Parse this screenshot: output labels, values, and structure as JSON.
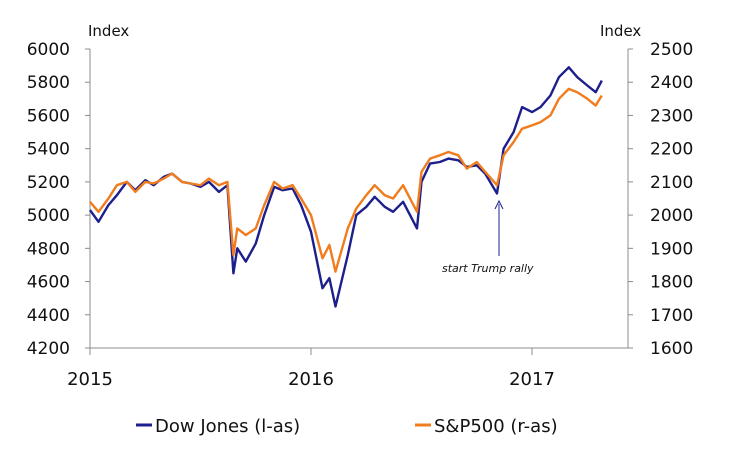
{
  "chart_data": {
    "type": "line",
    "title": "",
    "xlabel": "",
    "ylabel_left": "Index",
    "ylabel_right": "Index",
    "x_ticks": [
      "2015",
      "2016",
      "2017"
    ],
    "x_range": [
      "2015-01",
      "2017-07"
    ],
    "y_left": {
      "min": 4200,
      "max": 6000,
      "ticks": [
        "4200",
        "4400",
        "4600",
        "4800",
        "5000",
        "5200",
        "5400",
        "5600",
        "5800",
        "6000"
      ]
    },
    "y_right": {
      "min": 1600,
      "max": 2500,
      "ticks": [
        "1600",
        "1700",
        "1800",
        "1900",
        "2000",
        "2100",
        "2200",
        "2300",
        "2400",
        "2500"
      ]
    },
    "grid": false,
    "legend_position": "bottom",
    "annotation": {
      "text": "start Trump rally",
      "x": "2016-11",
      "y_left": 5080
    },
    "series": [
      {
        "name": "Dow Jones (l-as)",
        "axis": "left",
        "color": "#1c1f8c",
        "points": [
          [
            "2015-01",
            5030
          ],
          [
            "2015-01-15",
            4960
          ],
          [
            "2015-02",
            5060
          ],
          [
            "2015-02-15",
            5120
          ],
          [
            "2015-03",
            5200
          ],
          [
            "2015-03-15",
            5150
          ],
          [
            "2015-04",
            5210
          ],
          [
            "2015-04-15",
            5180
          ],
          [
            "2015-05",
            5230
          ],
          [
            "2015-05-15",
            5250
          ],
          [
            "2015-06",
            5200
          ],
          [
            "2015-06-15",
            5190
          ],
          [
            "2015-07",
            5170
          ],
          [
            "2015-07-15",
            5200
          ],
          [
            "2015-08",
            5140
          ],
          [
            "2015-08-15",
            5180
          ],
          [
            "2015-08-25",
            4650
          ],
          [
            "2015-09",
            4800
          ],
          [
            "2015-09-15",
            4720
          ],
          [
            "2015-10",
            4830
          ],
          [
            "2015-10-15",
            5000
          ],
          [
            "2015-11",
            5170
          ],
          [
            "2015-11-15",
            5150
          ],
          [
            "2015-12",
            5160
          ],
          [
            "2015-12-15",
            5060
          ],
          [
            "2016-01",
            4900
          ],
          [
            "2016-01-20",
            4560
          ],
          [
            "2016-02",
            4620
          ],
          [
            "2016-02-11",
            4450
          ],
          [
            "2016-03",
            4760
          ],
          [
            "2016-03-15",
            5000
          ],
          [
            "2016-04",
            5050
          ],
          [
            "2016-04-15",
            5110
          ],
          [
            "2016-05",
            5050
          ],
          [
            "2016-05-15",
            5020
          ],
          [
            "2016-06",
            5080
          ],
          [
            "2016-06-24",
            4920
          ],
          [
            "2016-07",
            5200
          ],
          [
            "2016-07-15",
            5310
          ],
          [
            "2016-08",
            5320
          ],
          [
            "2016-08-15",
            5340
          ],
          [
            "2016-09",
            5330
          ],
          [
            "2016-09-15",
            5290
          ],
          [
            "2016-10",
            5300
          ],
          [
            "2016-10-15",
            5250
          ],
          [
            "2016-11-04",
            5130
          ],
          [
            "2016-11-15",
            5400
          ],
          [
            "2016-12",
            5500
          ],
          [
            "2016-12-15",
            5650
          ],
          [
            "2017-01",
            5620
          ],
          [
            "2017-01-15",
            5650
          ],
          [
            "2017-02",
            5720
          ],
          [
            "2017-02-15",
            5830
          ],
          [
            "2017-03",
            5890
          ],
          [
            "2017-03-15",
            5830
          ],
          [
            "2017-04",
            5780
          ],
          [
            "2017-04-15",
            5740
          ],
          [
            "2017-04-25",
            5810
          ]
        ]
      },
      {
        "name": "S&P500 (r-as)",
        "axis": "right",
        "color": "#f07c1e",
        "points": [
          [
            "2015-01",
            2040
          ],
          [
            "2015-01-15",
            2010
          ],
          [
            "2015-02",
            2050
          ],
          [
            "2015-02-15",
            2090
          ],
          [
            "2015-03",
            2100
          ],
          [
            "2015-03-15",
            2070
          ],
          [
            "2015-04",
            2100
          ],
          [
            "2015-04-15",
            2095
          ],
          [
            "2015-05",
            2110
          ],
          [
            "2015-05-15",
            2125
          ],
          [
            "2015-06",
            2100
          ],
          [
            "2015-06-15",
            2095
          ],
          [
            "2015-07",
            2090
          ],
          [
            "2015-07-15",
            2110
          ],
          [
            "2015-08",
            2090
          ],
          [
            "2015-08-15",
            2100
          ],
          [
            "2015-08-25",
            1880
          ],
          [
            "2015-09",
            1960
          ],
          [
            "2015-09-15",
            1940
          ],
          [
            "2015-10",
            1960
          ],
          [
            "2015-10-15",
            2030
          ],
          [
            "2015-11",
            2100
          ],
          [
            "2015-11-15",
            2080
          ],
          [
            "2015-12",
            2090
          ],
          [
            "2015-12-15",
            2050
          ],
          [
            "2016-01",
            2000
          ],
          [
            "2016-01-20",
            1870
          ],
          [
            "2016-02",
            1910
          ],
          [
            "2016-02-11",
            1830
          ],
          [
            "2016-03",
            1960
          ],
          [
            "2016-03-15",
            2020
          ],
          [
            "2016-04",
            2060
          ],
          [
            "2016-04-15",
            2090
          ],
          [
            "2016-05",
            2060
          ],
          [
            "2016-05-15",
            2050
          ],
          [
            "2016-06",
            2090
          ],
          [
            "2016-06-24",
            2010
          ],
          [
            "2016-07",
            2130
          ],
          [
            "2016-07-15",
            2170
          ],
          [
            "2016-08",
            2180
          ],
          [
            "2016-08-15",
            2190
          ],
          [
            "2016-09",
            2180
          ],
          [
            "2016-09-15",
            2140
          ],
          [
            "2016-10",
            2160
          ],
          [
            "2016-10-15",
            2130
          ],
          [
            "2016-11-04",
            2090
          ],
          [
            "2016-11-15",
            2180
          ],
          [
            "2016-12",
            2220
          ],
          [
            "2016-12-15",
            2260
          ],
          [
            "2017-01",
            2270
          ],
          [
            "2017-01-15",
            2280
          ],
          [
            "2017-02",
            2300
          ],
          [
            "2017-02-15",
            2350
          ],
          [
            "2017-03",
            2380
          ],
          [
            "2017-03-15",
            2370
          ],
          [
            "2017-04",
            2350
          ],
          [
            "2017-04-15",
            2330
          ],
          [
            "2017-04-25",
            2360
          ]
        ]
      }
    ]
  }
}
